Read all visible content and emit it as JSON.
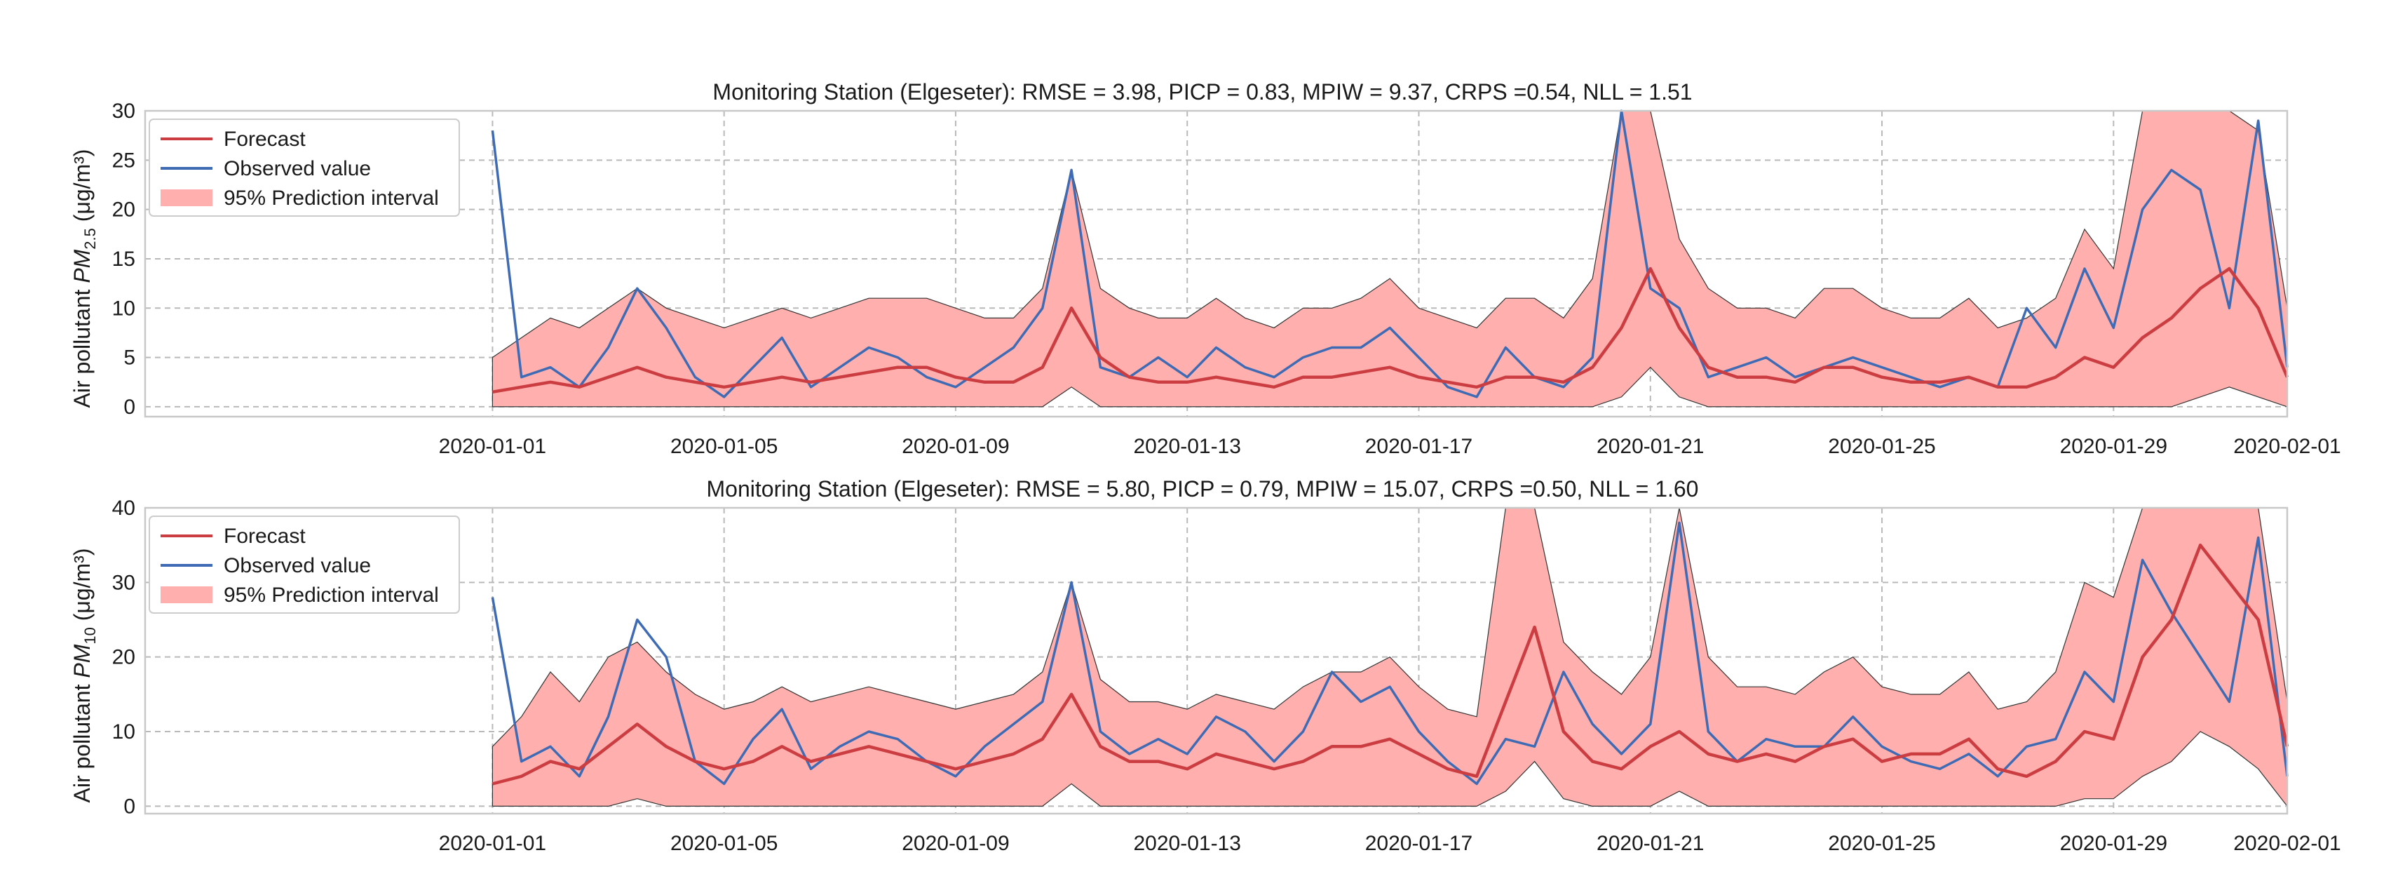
{
  "figure": {
    "colors": {
      "forecast": "#cc3d42",
      "observed": "#3f6bb5",
      "band": "#ffb0ae",
      "band_edge": "#333333",
      "grid": "#b9b9b9"
    }
  },
  "chart_data": [
    {
      "type": "line",
      "title": "Monitoring Station (Elgeseter): RMSE = 3.98, PICP = 0.83, MPIW = 9.37, CRPS =0.54, NLL = 1.51",
      "ylabel_prefix": "Air pollutant ",
      "ylabel_symbol": "PM",
      "ylabel_sub": "2.5",
      "ylabel_units": " (μg/m³)",
      "xlabel": "",
      "x_range": [
        "2019-12-26",
        "2020-02-01"
      ],
      "ylim": [
        -1,
        30
      ],
      "yticks": [
        0,
        5,
        10,
        15,
        20,
        25,
        30
      ],
      "xtick_labels": [
        "2020-01-01",
        "2020-01-05",
        "2020-01-09",
        "2020-01-13",
        "2020-01-17",
        "2020-01-21",
        "2020-01-25",
        "2020-01-29",
        "2020-02-01"
      ],
      "xtick_days": [
        6,
        10,
        14,
        18,
        22,
        26,
        30,
        34,
        37
      ],
      "legend": {
        "position": "upper-left",
        "entries": [
          "Forecast",
          "Observed value",
          "95% Prediction interval"
        ]
      },
      "grid": true,
      "day_offset": 6,
      "series_days": [
        0,
        0.5,
        1,
        1.5,
        2,
        2.5,
        3,
        3.5,
        4,
        4.5,
        5,
        5.5,
        6,
        6.5,
        7,
        7.5,
        8,
        8.5,
        9,
        9.5,
        10,
        10.5,
        11,
        11.5,
        12,
        12.5,
        13,
        13.5,
        14,
        14.5,
        15,
        15.5,
        16,
        16.5,
        17,
        17.5,
        18,
        18.5,
        19,
        19.5,
        20,
        20.5,
        21,
        21.5,
        22,
        22.5,
        23,
        23.5,
        24,
        24.5,
        25,
        25.5,
        26,
        26.5,
        27,
        27.5,
        28,
        28.5,
        29,
        29.5,
        30,
        30.5,
        31
      ],
      "series": [
        {
          "name": "Forecast",
          "values": [
            1.5,
            2,
            2.5,
            2,
            3,
            4,
            3,
            2.5,
            2,
            2.5,
            3,
            2.5,
            3,
            3.5,
            4,
            4,
            3,
            2.5,
            2.5,
            4,
            10,
            5,
            3,
            2.5,
            2.5,
            3,
            2.5,
            2,
            3,
            3,
            3.5,
            4,
            3,
            2.5,
            2,
            3,
            3,
            2.5,
            4,
            8,
            14,
            8,
            4,
            3,
            3,
            2.5,
            4,
            4,
            3,
            2.5,
            2.5,
            3,
            2,
            2,
            3,
            5,
            4,
            7,
            9,
            12,
            14,
            10,
            3
          ]
        },
        {
          "name": "Observed value",
          "values": [
            28,
            3,
            4,
            2,
            6,
            12,
            8,
            3,
            1,
            4,
            7,
            2,
            4,
            6,
            5,
            3,
            2,
            4,
            6,
            10,
            24,
            4,
            3,
            5,
            3,
            6,
            4,
            3,
            5,
            6,
            6,
            8,
            5,
            2,
            1,
            6,
            3,
            2,
            5,
            30,
            12,
            10,
            3,
            4,
            5,
            3,
            4,
            5,
            4,
            3,
            2,
            3,
            2,
            10,
            6,
            14,
            8,
            20,
            24,
            22,
            10,
            29,
            4
          ]
        },
        {
          "name": "95% Prediction interval (lower)",
          "values": [
            0,
            0,
            0,
            0,
            0,
            0,
            0,
            0,
            0,
            0,
            0,
            0,
            0,
            0,
            0,
            0,
            0,
            0,
            0,
            0,
            2,
            0,
            0,
            0,
            0,
            0,
            0,
            0,
            0,
            0,
            0,
            0,
            0,
            0,
            0,
            0,
            0,
            0,
            0,
            1,
            4,
            1,
            0,
            0,
            0,
            0,
            0,
            0,
            0,
            0,
            0,
            0,
            0,
            0,
            0,
            0,
            0,
            0,
            0,
            1,
            2,
            1,
            0
          ]
        },
        {
          "name": "95% Prediction interval (upper)",
          "values": [
            5,
            7,
            9,
            8,
            10,
            12,
            10,
            9,
            8,
            9,
            10,
            9,
            10,
            11,
            11,
            11,
            10,
            9,
            9,
            12,
            24,
            12,
            10,
            9,
            9,
            11,
            9,
            8,
            10,
            10,
            11,
            13,
            10,
            9,
            8,
            11,
            11,
            9,
            13,
            30,
            30,
            17,
            12,
            10,
            10,
            9,
            12,
            12,
            10,
            9,
            9,
            11,
            8,
            9,
            11,
            18,
            14,
            30,
            30,
            30,
            30,
            28,
            10
          ]
        }
      ]
    },
    {
      "type": "line",
      "title": "Monitoring Station (Elgeseter): RMSE = 5.80, PICP = 0.79, MPIW = 15.07, CRPS =0.50, NLL = 1.60",
      "ylabel_prefix": "Air pollutant ",
      "ylabel_symbol": "PM",
      "ylabel_sub": "10",
      "ylabel_units": " (μg/m³)",
      "xlabel": "",
      "x_range": [
        "2019-12-26",
        "2020-02-01"
      ],
      "ylim": [
        -1,
        40
      ],
      "yticks": [
        0,
        10,
        20,
        30,
        40
      ],
      "xtick_labels": [
        "2020-01-01",
        "2020-01-05",
        "2020-01-09",
        "2020-01-13",
        "2020-01-17",
        "2020-01-21",
        "2020-01-25",
        "2020-01-29",
        "2020-02-01"
      ],
      "xtick_days": [
        6,
        10,
        14,
        18,
        22,
        26,
        30,
        34,
        37
      ],
      "legend": {
        "position": "upper-left",
        "entries": [
          "Forecast",
          "Observed value",
          "95% Prediction interval"
        ]
      },
      "grid": true,
      "day_offset": 6,
      "series_days": [
        0,
        0.5,
        1,
        1.5,
        2,
        2.5,
        3,
        3.5,
        4,
        4.5,
        5,
        5.5,
        6,
        6.5,
        7,
        7.5,
        8,
        8.5,
        9,
        9.5,
        10,
        10.5,
        11,
        11.5,
        12,
        12.5,
        13,
        13.5,
        14,
        14.5,
        15,
        15.5,
        16,
        16.5,
        17,
        17.5,
        18,
        18.5,
        19,
        19.5,
        20,
        20.5,
        21,
        21.5,
        22,
        22.5,
        23,
        23.5,
        24,
        24.5,
        25,
        25.5,
        26,
        26.5,
        27,
        27.5,
        28,
        28.5,
        29,
        29.5,
        30,
        30.5,
        31
      ],
      "series": [
        {
          "name": "Forecast",
          "values": [
            3,
            4,
            6,
            5,
            8,
            11,
            8,
            6,
            5,
            6,
            8,
            6,
            7,
            8,
            7,
            6,
            5,
            6,
            7,
            9,
            15,
            8,
            6,
            6,
            5,
            7,
            6,
            5,
            6,
            8,
            8,
            9,
            7,
            5,
            4,
            14,
            24,
            10,
            6,
            5,
            8,
            10,
            7,
            6,
            7,
            6,
            8,
            9,
            6,
            7,
            7,
            9,
            5,
            4,
            6,
            10,
            9,
            20,
            25,
            35,
            30,
            25,
            8
          ]
        },
        {
          "name": "Observed value",
          "values": [
            28,
            6,
            8,
            4,
            12,
            25,
            20,
            6,
            3,
            9,
            13,
            5,
            8,
            10,
            9,
            6,
            4,
            8,
            11,
            14,
            30,
            10,
            7,
            9,
            7,
            12,
            10,
            6,
            10,
            18,
            14,
            16,
            10,
            6,
            3,
            9,
            8,
            18,
            11,
            7,
            11,
            38,
            10,
            6,
            9,
            8,
            8,
            12,
            8,
            6,
            5,
            7,
            4,
            8,
            9,
            18,
            14,
            33,
            26,
            20,
            14,
            36,
            4
          ]
        },
        {
          "name": "95% Prediction interval (lower)",
          "values": [
            0,
            0,
            0,
            0,
            0,
            1,
            0,
            0,
            0,
            0,
            0,
            0,
            0,
            0,
            0,
            0,
            0,
            0,
            0,
            0,
            3,
            0,
            0,
            0,
            0,
            0,
            0,
            0,
            0,
            0,
            0,
            0,
            0,
            0,
            0,
            2,
            6,
            1,
            0,
            0,
            0,
            2,
            0,
            0,
            0,
            0,
            0,
            0,
            0,
            0,
            0,
            0,
            0,
            0,
            0,
            1,
            1,
            4,
            6,
            10,
            8,
            5,
            0
          ]
        },
        {
          "name": "95% Prediction interval (upper)",
          "values": [
            8,
            12,
            18,
            14,
            20,
            22,
            18,
            15,
            13,
            14,
            16,
            14,
            15,
            16,
            15,
            14,
            13,
            14,
            15,
            18,
            30,
            17,
            14,
            14,
            13,
            15,
            14,
            13,
            16,
            18,
            18,
            20,
            16,
            13,
            12,
            40,
            40,
            22,
            18,
            15,
            20,
            40,
            20,
            16,
            16,
            15,
            18,
            20,
            16,
            15,
            15,
            18,
            13,
            14,
            18,
            30,
            28,
            40,
            40,
            40,
            40,
            40,
            14
          ]
        }
      ]
    }
  ]
}
